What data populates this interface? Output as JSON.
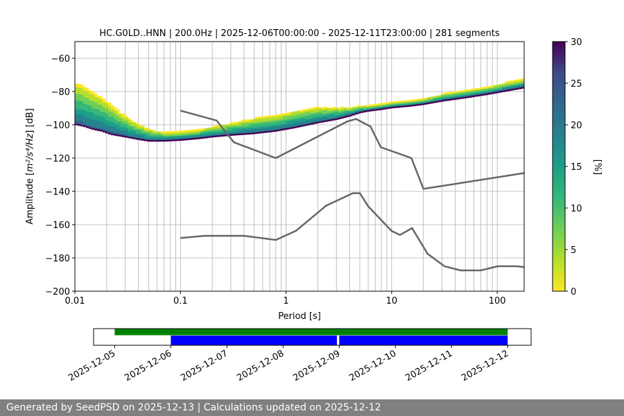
{
  "chart_data": [
    {
      "type": "heatmap",
      "title": "HC.G0LD..HNN | 200.0Hz | 2025-12-06T00:00:00 - 2025-12-11T23:00:00 | 281 segments",
      "xlabel": "Period [s]",
      "ylabel_main": "Amplitude [",
      "ylabel_math": "m²/s⁴/Hz",
      "ylabel_end": "] [dB]",
      "x_scale": "log",
      "xlim": [
        0.01,
        180
      ],
      "ylim": [
        -200,
        -50
      ],
      "x_ticks": [
        0.01,
        0.1,
        1,
        10,
        100
      ],
      "x_tick_labels": [
        "0.01",
        "0.1",
        "1",
        "10",
        "100"
      ],
      "y_ticks": [
        -200,
        -180,
        -160,
        -140,
        -120,
        -100,
        -80,
        -60
      ],
      "y_tick_labels": [
        "−200",
        "−180",
        "−160",
        "−140",
        "−120",
        "−100",
        "−80",
        "−60"
      ],
      "grid": "vertical log grid, horizontal at y ticks",
      "colorbar": {
        "label": "[%]",
        "range": [
          0,
          30
        ],
        "ticks": [
          0,
          5,
          10,
          15,
          20,
          25,
          30
        ],
        "tick_labels": [
          "0",
          "5",
          "10",
          "15",
          "20",
          "25",
          "30"
        ],
        "colormap": "viridis_r"
      },
      "psd_mode_curve": {
        "x": [
          0.01,
          0.012,
          0.015,
          0.018,
          0.022,
          0.027,
          0.033,
          0.04,
          0.05,
          0.07,
          0.1,
          0.15,
          0.2,
          0.3,
          0.5,
          0.8,
          1.2,
          2,
          3,
          4,
          5,
          6,
          8,
          10,
          15,
          20,
          30,
          50,
          80,
          120,
          180
        ],
        "y": [
          -100,
          -101,
          -103,
          -104,
          -106,
          -107,
          -108,
          -109,
          -110,
          -110,
          -109.5,
          -108.5,
          -107.5,
          -106.5,
          -105.5,
          -104,
          -102,
          -99,
          -97,
          -95,
          -93,
          -92,
          -91,
          -90,
          -89,
          -88,
          -86,
          -84,
          -82,
          -80,
          -78
        ],
        "spread_db": [
          24,
          24,
          22,
          20,
          18,
          14,
          11,
          9,
          7,
          5,
          5,
          5,
          6,
          7,
          9,
          9,
          10,
          9,
          7,
          5,
          4,
          3,
          3,
          3,
          3,
          3,
          4,
          4,
          4,
          5,
          5
        ]
      },
      "high_noise_model": {
        "x": [
          0.1,
          0.22,
          0.32,
          0.8,
          3.8,
          4.6,
          6.3,
          7.9,
          15.4,
          20,
          180
        ],
        "y": [
          -91.5,
          -97.4,
          -110.5,
          -120,
          -98,
          -96.5,
          -101,
          -113.5,
          -120,
          -138.5,
          -129
        ]
      },
      "low_noise_model": {
        "x": [
          0.1,
          0.17,
          0.4,
          0.8,
          1.24,
          2.4,
          4.3,
          5,
          6,
          10,
          12,
          15.6,
          21.9,
          31.6,
          45,
          70,
          101,
          154,
          180
        ],
        "y": [
          -168,
          -166.7,
          -166.7,
          -169.2,
          -163.7,
          -148.6,
          -141.1,
          -141.1,
          -149,
          -163.8,
          -166.2,
          -162.1,
          -177.5,
          -185,
          -187.5,
          -187.5,
          -185,
          -185,
          -185.5
        ]
      }
    },
    {
      "type": "bar",
      "name": "data availability",
      "x_tick_labels": [
        "2025-12-05",
        "2025-12-06",
        "2025-12-07",
        "2025-12-08",
        "2025-12-09",
        "2025-12-10",
        "2025-12-11",
        "2025-12-12"
      ],
      "xlim": [
        "2025-12-04T15:00",
        "2025-12-12T10:00"
      ],
      "segments": [
        {
          "row": "top",
          "color": "#008000",
          "start": "2025-12-05T00:00",
          "end": "2025-12-12T00:00"
        },
        {
          "row": "bottom",
          "color": "#0000ff",
          "start": "2025-12-06T00:00",
          "end": "2025-12-08T23:00"
        },
        {
          "row": "bottom",
          "color": "#0000ff",
          "start": "2025-12-09T00:00",
          "end": "2025-12-12T00:00"
        }
      ]
    }
  ],
  "footer": {
    "text": "Generated by SeedPSD on 2025-12-13 | Calculations updated on 2025-12-12"
  }
}
